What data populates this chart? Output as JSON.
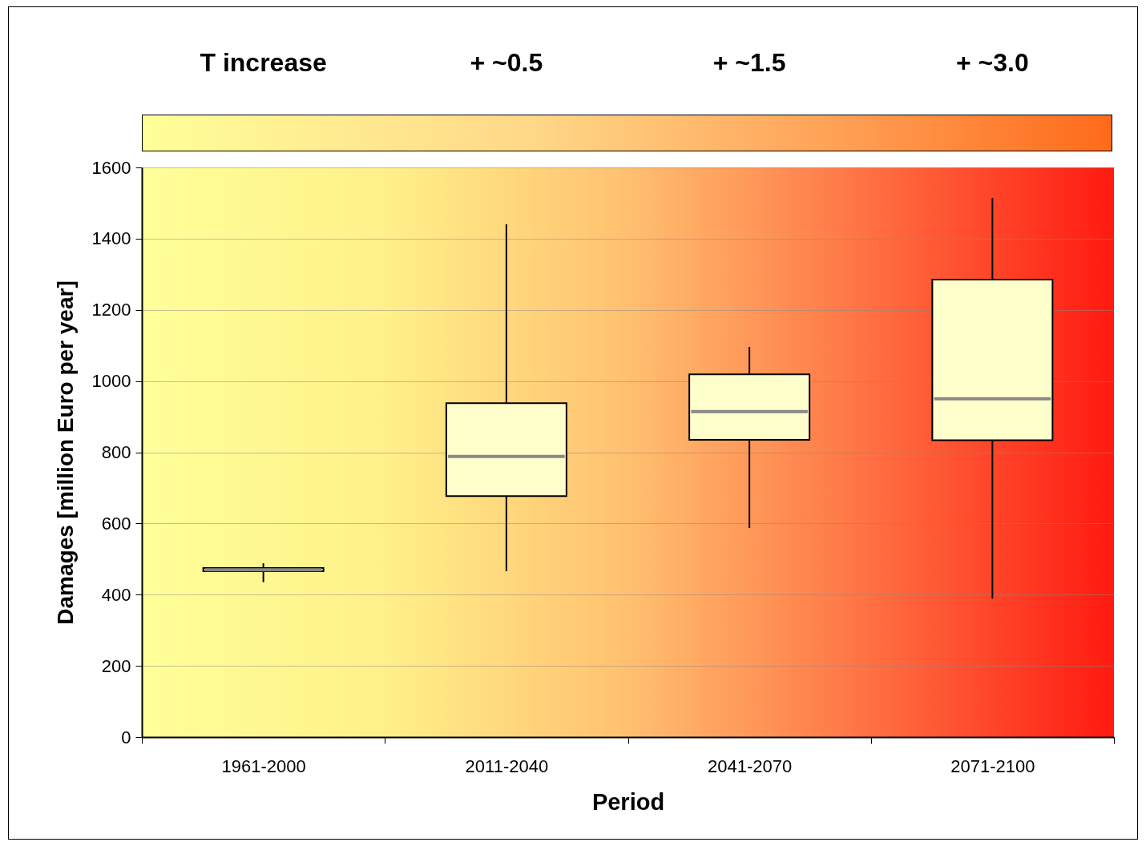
{
  "chart_data": {
    "type": "box",
    "xlabel": "Period",
    "ylabel": "Damages [million Euro per year]",
    "annotations": [
      "T increase",
      "+ ~0.5",
      "+ ~1.5",
      "+ ~3.0"
    ],
    "categories": [
      "1961-2000",
      "2011-2040",
      "2041-2070",
      "2071-2100"
    ],
    "series": [
      {
        "color": "#ffffcc",
        "boxes": [
          {
            "low": 435,
            "q1": 466,
            "median": 470,
            "q3": 475,
            "high": 488
          },
          {
            "low": 466,
            "q1": 677,
            "median": 788,
            "q3": 938,
            "high": 1440
          },
          {
            "low": 587,
            "q1": 835,
            "median": 914,
            "q3": 1019,
            "high": 1096
          },
          {
            "low": 389,
            "q1": 834,
            "median": 950,
            "q3": 1285,
            "high": 1514
          }
        ]
      }
    ],
    "ylim": [
      0,
      1600
    ],
    "yticks": [
      0,
      200,
      400,
      600,
      800,
      1000,
      1200,
      1400,
      1600
    ],
    "grid": "y"
  }
}
